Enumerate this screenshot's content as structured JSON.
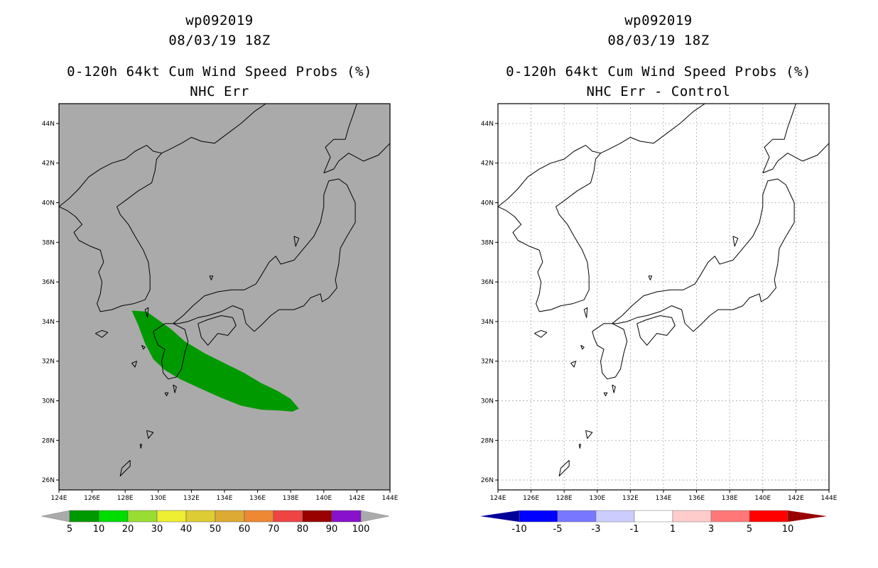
{
  "chart_data": [
    {
      "type": "map",
      "storm_id": "wp092019",
      "datetime": "08/03/19 18Z",
      "title": "0-120h 64kt Cum Wind Speed Probs (%)",
      "subtitle": "NHC Err",
      "background": "#aaaaaa",
      "grid": false,
      "lon_range": [
        124,
        144
      ],
      "lat_range": [
        25.5,
        45
      ],
      "x_ticks": [
        "124E",
        "126E",
        "128E",
        "130E",
        "132E",
        "134E",
        "136E",
        "138E",
        "140E",
        "142E",
        "144E"
      ],
      "y_ticks": [
        "26N",
        "28N",
        "30N",
        "32N",
        "34N",
        "36N",
        "38N",
        "40N",
        "42N",
        "44N"
      ],
      "probability_region": {
        "level_range": "5-10%",
        "color": "#009900",
        "polygon_lonlat": [
          [
            128.4,
            34.55
          ],
          [
            129.3,
            34.5
          ],
          [
            130.8,
            33.6
          ],
          [
            131.6,
            33.0
          ],
          [
            132.8,
            32.4
          ],
          [
            134.0,
            31.9
          ],
          [
            135.2,
            31.4
          ],
          [
            136.2,
            30.9
          ],
          [
            137.2,
            30.5
          ],
          [
            138.0,
            30.1
          ],
          [
            138.5,
            29.6
          ],
          [
            138.1,
            29.45
          ],
          [
            137.4,
            29.5
          ],
          [
            136.2,
            29.55
          ],
          [
            135.0,
            29.75
          ],
          [
            133.8,
            30.15
          ],
          [
            132.6,
            30.6
          ],
          [
            131.3,
            31.1
          ],
          [
            130.4,
            31.55
          ],
          [
            129.7,
            32.1
          ],
          [
            129.2,
            32.9
          ],
          [
            128.8,
            33.8
          ],
          [
            128.4,
            34.55
          ]
        ]
      },
      "colorbar": {
        "labels": [
          "5",
          "10",
          "20",
          "30",
          "40",
          "50",
          "60",
          "70",
          "80",
          "90",
          "100"
        ],
        "colors": [
          "#009900",
          "#00dd00",
          "#99dd33",
          "#eeee33",
          "#ddcc33",
          "#ddaa33",
          "#ee8833",
          "#ee4444",
          "#990000",
          "#8811cc"
        ],
        "extension_color": "#aaaaaa"
      }
    },
    {
      "type": "map",
      "storm_id": "wp092019",
      "datetime": "08/03/19 18Z",
      "title": "0-120h 64kt Cum Wind Speed Probs (%)",
      "subtitle": "NHC Err - Control",
      "background": "#ffffff",
      "grid": true,
      "lon_range": [
        124,
        144
      ],
      "lat_range": [
        25.5,
        45
      ],
      "x_ticks": [
        "124E",
        "126E",
        "128E",
        "130E",
        "132E",
        "134E",
        "136E",
        "138E",
        "140E",
        "142E",
        "144E"
      ],
      "y_ticks": [
        "26N",
        "28N",
        "30N",
        "32N",
        "34N",
        "36N",
        "38N",
        "40N",
        "42N",
        "44N"
      ],
      "colorbar": {
        "labels": [
          "-10",
          "-5",
          "-3",
          "-1",
          "1",
          "3",
          "5",
          "10"
        ],
        "colors": [
          "#0000ff",
          "#7777ff",
          "#ccccff",
          "#ffffff",
          "#ffcccc",
          "#ff7777",
          "#ff0000"
        ],
        "low_extension_color": "#000099",
        "high_extension_color": "#990000"
      }
    }
  ]
}
